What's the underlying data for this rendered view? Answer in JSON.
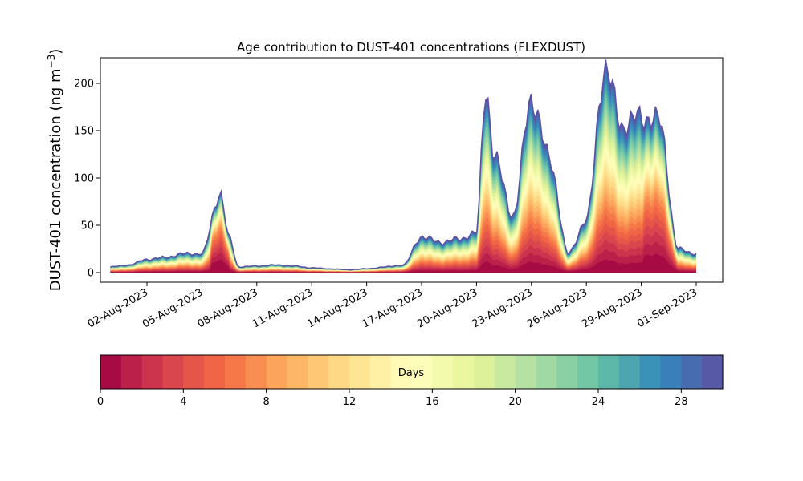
{
  "chart_data": {
    "type": "area",
    "stacked": true,
    "title": "Age contribution to DUST-401 concentrations (FLEXDUST)",
    "ylabel": "DUST-401 concentration (ng m⁻³)",
    "xlabel": "",
    "x_start": "2023-07-31",
    "x_end": "2023-09-01",
    "ylim": [
      0,
      220
    ],
    "yticks": [
      0,
      50,
      100,
      150,
      200
    ],
    "xticks": [
      "02-Aug-2023",
      "05-Aug-2023",
      "08-Aug-2023",
      "11-Aug-2023",
      "14-Aug-2023",
      "17-Aug-2023",
      "20-Aug-2023",
      "23-Aug-2023",
      "26-Aug-2023",
      "29-Aug-2023",
      "01-Sep-2023"
    ],
    "grid": false,
    "colormap": "Spectral",
    "age_days_max": 30,
    "total_concentration": [
      {
        "date": "2023-07-31",
        "value": 6
      },
      {
        "date": "2023-08-01",
        "value": 8
      },
      {
        "date": "2023-08-02",
        "value": 14
      },
      {
        "date": "2023-08-03",
        "value": 16
      },
      {
        "date": "2023-08-04",
        "value": 20
      },
      {
        "date": "2023-08-05",
        "value": 20
      },
      {
        "date": "2023-08-06",
        "value": 84
      },
      {
        "date": "2023-08-06T12:00",
        "value": 36
      },
      {
        "date": "2023-08-07",
        "value": 6
      },
      {
        "date": "2023-08-08",
        "value": 7
      },
      {
        "date": "2023-08-09",
        "value": 8
      },
      {
        "date": "2023-08-10",
        "value": 7
      },
      {
        "date": "2023-08-11",
        "value": 5
      },
      {
        "date": "2023-08-12",
        "value": 4
      },
      {
        "date": "2023-08-13",
        "value": 3
      },
      {
        "date": "2023-08-14",
        "value": 4
      },
      {
        "date": "2023-08-15",
        "value": 6
      },
      {
        "date": "2023-08-16",
        "value": 8
      },
      {
        "date": "2023-08-17",
        "value": 38
      },
      {
        "date": "2023-08-18",
        "value": 32
      },
      {
        "date": "2023-08-19",
        "value": 35
      },
      {
        "date": "2023-08-20",
        "value": 42
      },
      {
        "date": "2023-08-20T12:00",
        "value": 195
      },
      {
        "date": "2023-08-21",
        "value": 120
      },
      {
        "date": "2023-08-22",
        "value": 60
      },
      {
        "date": "2023-08-23",
        "value": 185
      },
      {
        "date": "2023-08-24",
        "value": 120
      },
      {
        "date": "2023-08-25",
        "value": 20
      },
      {
        "date": "2023-08-26",
        "value": 55
      },
      {
        "date": "2023-08-27",
        "value": 215
      },
      {
        "date": "2023-08-28",
        "value": 155
      },
      {
        "date": "2023-08-29",
        "value": 165
      },
      {
        "date": "2023-08-30",
        "value": 160
      },
      {
        "date": "2023-08-31",
        "value": 25
      },
      {
        "date": "2023-09-01",
        "value": 20
      }
    ],
    "colorbar": {
      "label": "Days",
      "range": [
        0,
        30
      ],
      "ticks": [
        0,
        4,
        8,
        12,
        16,
        20,
        24,
        28
      ],
      "levels": 30
    }
  }
}
